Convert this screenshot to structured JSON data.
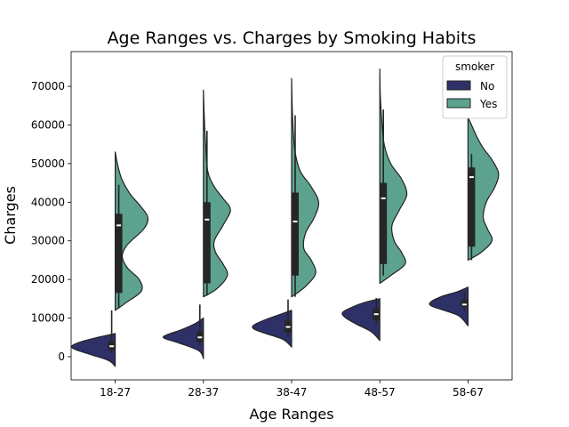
{
  "chart_data": {
    "type": "violin",
    "title": "Age Ranges vs. Charges by Smoking Habits",
    "xlabel": "Age Ranges",
    "ylabel": "Charges",
    "categories": [
      "18-27",
      "28-37",
      "38-47",
      "48-57",
      "58-67"
    ],
    "ylim": [
      -6000,
      79000
    ],
    "yticks": [
      0,
      10000,
      20000,
      30000,
      40000,
      50000,
      60000,
      70000
    ],
    "grid": false,
    "split": true,
    "legend": {
      "title": "smoker",
      "placement": "top-right",
      "entries": [
        {
          "label": "No",
          "color": "#2e3168"
        },
        {
          "label": "Yes",
          "color": "#5ca28f"
        }
      ]
    },
    "series": [
      {
        "name": "No",
        "side": "left",
        "color": "#2e3168",
        "groups": [
          {
            "category": "18-27",
            "range": [
              -2500,
              6000
            ],
            "q1": 1700,
            "median": 2700,
            "q3": 4000,
            "whisker": [
              1100,
              12000
            ],
            "density": [
              [
                -2500,
                0.0
              ],
              [
                -1000,
                0.15
              ],
              [
                500,
                0.55
              ],
              [
                1800,
                0.9
              ],
              [
                2700,
                1.0
              ],
              [
                3800,
                0.8
              ],
              [
                5000,
                0.4
              ],
              [
                6000,
                0.0
              ]
            ]
          },
          {
            "category": "28-37",
            "range": [
              -500,
              10000
            ],
            "q1": 3800,
            "median": 5000,
            "q3": 6500,
            "whisker": [
              3000,
              13500
            ],
            "density": [
              [
                -500,
                0.0
              ],
              [
                1500,
                0.1
              ],
              [
                3500,
                0.55
              ],
              [
                4800,
                0.9
              ],
              [
                5600,
                0.85
              ],
              [
                7000,
                0.5
              ],
              [
                8500,
                0.2
              ],
              [
                10000,
                0.0
              ]
            ]
          },
          {
            "category": "38-47",
            "range": [
              2500,
              12000
            ],
            "q1": 6200,
            "median": 7700,
            "q3": 9300,
            "whisker": [
              5200,
              14800
            ],
            "density": [
              [
                2500,
                0.0
              ],
              [
                4500,
                0.2
              ],
              [
                6200,
                0.65
              ],
              [
                7300,
                0.88
              ],
              [
                8300,
                0.85
              ],
              [
                9800,
                0.55
              ],
              [
                11000,
                0.25
              ],
              [
                12000,
                0.0
              ]
            ]
          },
          {
            "category": "48-57",
            "range": [
              4200,
              15000
            ],
            "q1": 9500,
            "median": 11000,
            "q3": 12500,
            "whisker": [
              8300,
              15200
            ],
            "density": [
              [
                4200,
                0.0
              ],
              [
                6500,
                0.2
              ],
              [
                8500,
                0.55
              ],
              [
                10200,
                0.8
              ],
              [
                11500,
                0.85
              ],
              [
                13000,
                0.6
              ],
              [
                14200,
                0.3
              ],
              [
                15000,
                0.0
              ]
            ]
          },
          {
            "category": "58-67",
            "range": [
              8000,
              18000
            ],
            "q1": 12800,
            "median": 13500,
            "q3": 14800,
            "whisker": [
              11800,
              16800
            ],
            "density": [
              [
                8000,
                0.0
              ],
              [
                10500,
                0.2
              ],
              [
                12000,
                0.55
              ],
              [
                13200,
                0.85
              ],
              [
                14200,
                0.85
              ],
              [
                15600,
                0.6
              ],
              [
                16800,
                0.25
              ],
              [
                18000,
                0.0
              ]
            ]
          }
        ]
      },
      {
        "name": "Yes",
        "side": "right",
        "color": "#5ca28f",
        "groups": [
          {
            "category": "18-27",
            "range": [
              12000,
              53000
            ],
            "q1": 16500,
            "median": 34000,
            "q3": 37000,
            "whisker": [
              12500,
              44500
            ],
            "density": [
              [
                12000,
                0.0
              ],
              [
                14000,
                0.25
              ],
              [
                17000,
                0.6
              ],
              [
                20000,
                0.55
              ],
              [
                23000,
                0.28
              ],
              [
                26000,
                0.16
              ],
              [
                29000,
                0.28
              ],
              [
                33000,
                0.65
              ],
              [
                36000,
                0.75
              ],
              [
                39000,
                0.58
              ],
              [
                42000,
                0.35
              ],
              [
                46000,
                0.15
              ],
              [
                50000,
                0.05
              ],
              [
                53000,
                0.0
              ]
            ]
          },
          {
            "category": "28-37",
            "range": [
              15500,
              69000
            ],
            "q1": 19000,
            "median": 35500,
            "q3": 40000,
            "whisker": [
              15800,
              58500
            ],
            "density": [
              [
                15500,
                0.0
              ],
              [
                17500,
                0.3
              ],
              [
                21000,
                0.55
              ],
              [
                24000,
                0.45
              ],
              [
                27000,
                0.28
              ],
              [
                30000,
                0.25
              ],
              [
                34000,
                0.45
              ],
              [
                38000,
                0.62
              ],
              [
                41000,
                0.45
              ],
              [
                44000,
                0.25
              ],
              [
                48000,
                0.1
              ],
              [
                55000,
                0.05
              ],
              [
                62000,
                0.02
              ],
              [
                69000,
                0.0
              ]
            ]
          },
          {
            "category": "38-47",
            "range": [
              15500,
              72000
            ],
            "q1": 21000,
            "median": 35000,
            "q3": 42500,
            "whisker": [
              15500,
              62500
            ],
            "density": [
              [
                15500,
                0.0
              ],
              [
                18000,
                0.3
              ],
              [
                21500,
                0.55
              ],
              [
                25000,
                0.45
              ],
              [
                28000,
                0.28
              ],
              [
                32000,
                0.32
              ],
              [
                36000,
                0.52
              ],
              [
                40000,
                0.62
              ],
              [
                44000,
                0.45
              ],
              [
                48000,
                0.2
              ],
              [
                53000,
                0.08
              ],
              [
                60000,
                0.03
              ],
              [
                66000,
                0.01
              ],
              [
                72000,
                0.0
              ]
            ]
          },
          {
            "category": "48-57",
            "range": [
              19000,
              74500
            ],
            "q1": 24000,
            "median": 41000,
            "q3": 45000,
            "whisker": [
              21000,
              64000
            ],
            "density": [
              [
                19000,
                0.0
              ],
              [
                21000,
                0.25
              ],
              [
                24000,
                0.58
              ],
              [
                27000,
                0.5
              ],
              [
                30000,
                0.33
              ],
              [
                34000,
                0.28
              ],
              [
                38000,
                0.45
              ],
              [
                42000,
                0.62
              ],
              [
                46000,
                0.5
              ],
              [
                50000,
                0.25
              ],
              [
                55000,
                0.1
              ],
              [
                62000,
                0.04
              ],
              [
                68000,
                0.01
              ],
              [
                74500,
                0.0
              ]
            ]
          },
          {
            "category": "58-67",
            "range": [
              25000,
              62000
            ],
            "q1": 28500,
            "median": 46500,
            "q3": 49000,
            "whisker": [
              25000,
              52500
            ],
            "density": [
              [
                25000,
                0.0
              ],
              [
                27000,
                0.3
              ],
              [
                30000,
                0.55
              ],
              [
                33000,
                0.45
              ],
              [
                36000,
                0.35
              ],
              [
                40000,
                0.42
              ],
              [
                44000,
                0.62
              ],
              [
                47500,
                0.7
              ],
              [
                51000,
                0.55
              ],
              [
                54000,
                0.35
              ],
              [
                57000,
                0.2
              ],
              [
                60000,
                0.08
              ],
              [
                62000,
                0.0
              ]
            ]
          }
        ]
      }
    ]
  }
}
